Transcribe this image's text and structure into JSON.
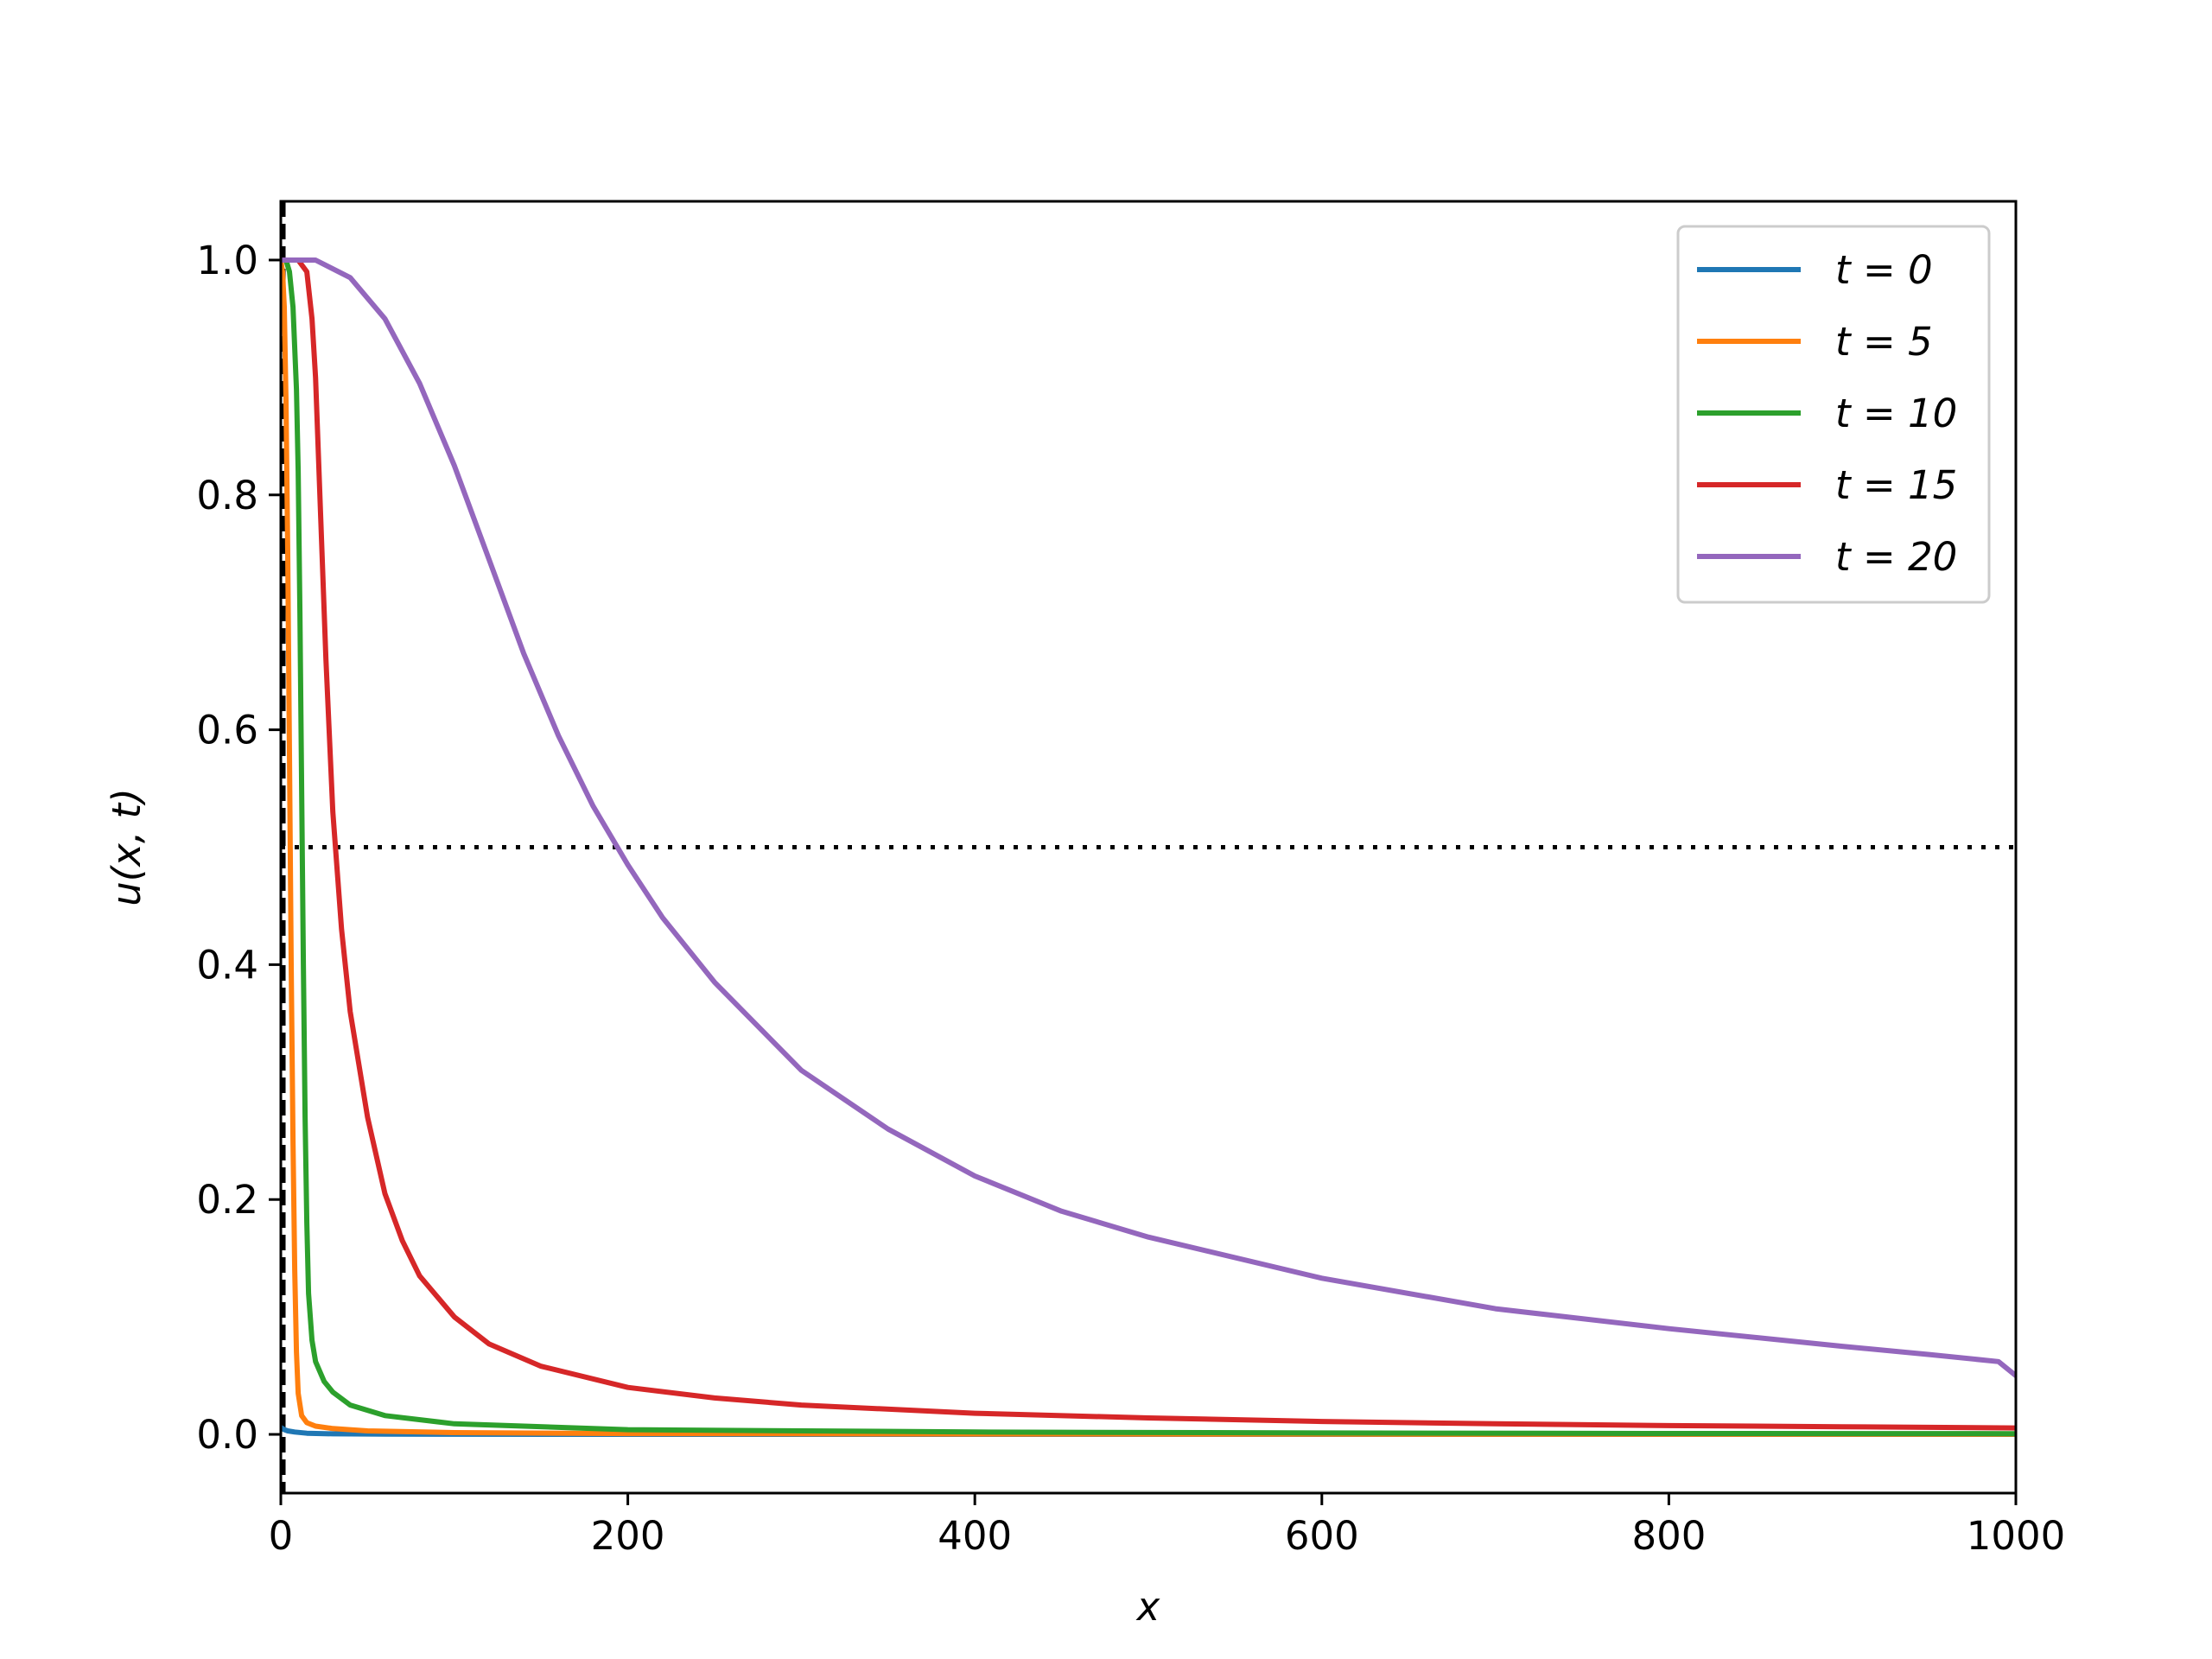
{
  "chart_data": {
    "type": "line",
    "title": "",
    "xlabel": "x",
    "ylabel": "u(x, t)",
    "xlim": [
      0,
      1000
    ],
    "ylim": [
      -0.05,
      1.05
    ],
    "xticks": [
      0,
      200,
      400,
      600,
      800,
      1000
    ],
    "xtick_labels": [
      "0",
      "200",
      "400",
      "600",
      "800",
      "1000"
    ],
    "yticks": [
      0.0,
      0.2,
      0.4,
      0.6,
      0.8,
      1.0
    ],
    "ytick_labels": [
      "0.0",
      "0.2",
      "0.4",
      "0.6",
      "0.8",
      "1.0"
    ],
    "grid": false,
    "legend_position": "top-right",
    "reference_lines": [
      {
        "orientation": "horizontal",
        "value": 0.5,
        "style": "dotted",
        "color": "#000000"
      },
      {
        "orientation": "vertical",
        "value": 1.5,
        "style": "dashed",
        "color": "#000000"
      }
    ],
    "series": [
      {
        "name": "t = 0",
        "color": "#1f77b4",
        "x": [
          0,
          1,
          2,
          4,
          8,
          15,
          30,
          60,
          100,
          200,
          400,
          600,
          800,
          1000
        ],
        "y": [
          0.006,
          0.005,
          0.004,
          0.003,
          0.002,
          0.001,
          0.0005,
          0.0002,
          0.0001,
          0.0,
          0.0,
          0.0,
          0.0,
          0.0
        ]
      },
      {
        "name": "t = 5",
        "color": "#ff7f0e",
        "x": [
          0,
          1,
          2,
          3,
          4,
          5,
          6,
          7,
          8,
          9,
          10,
          12,
          15,
          20,
          30,
          50,
          100,
          200,
          400,
          600,
          800,
          1000
        ],
        "y": [
          1.0,
          0.99,
          0.96,
          0.88,
          0.75,
          0.58,
          0.4,
          0.25,
          0.14,
          0.07,
          0.035,
          0.016,
          0.01,
          0.007,
          0.005,
          0.003,
          0.0015,
          0.0007,
          0.0003,
          0.0002,
          0.0001,
          0.0001
        ]
      },
      {
        "name": "t = 10",
        "color": "#2ca02c",
        "x": [
          0,
          3,
          5,
          7,
          9,
          10,
          11,
          12,
          13,
          14,
          15,
          16,
          18,
          20,
          25,
          30,
          40,
          60,
          100,
          200,
          400,
          600,
          800,
          1000
        ],
        "y": [
          1.0,
          1.0,
          0.99,
          0.96,
          0.89,
          0.82,
          0.7,
          0.55,
          0.4,
          0.27,
          0.18,
          0.12,
          0.08,
          0.062,
          0.045,
          0.036,
          0.025,
          0.016,
          0.009,
          0.004,
          0.002,
          0.0012,
          0.0008,
          0.0006
        ]
      },
      {
        "name": "t = 15",
        "color": "#d62728",
        "x": [
          0,
          5,
          10,
          15,
          18,
          20,
          23,
          26,
          30,
          35,
          40,
          50,
          60,
          70,
          80,
          100,
          120,
          150,
          200,
          250,
          300,
          400,
          500,
          600,
          700,
          800,
          900,
          1000
        ],
        "y": [
          1.0,
          1.0,
          1.0,
          0.99,
          0.95,
          0.9,
          0.78,
          0.66,
          0.53,
          0.43,
          0.36,
          0.27,
          0.205,
          0.165,
          0.135,
          0.1,
          0.077,
          0.058,
          0.04,
          0.031,
          0.025,
          0.018,
          0.014,
          0.011,
          0.009,
          0.0075,
          0.0065,
          0.0055
        ]
      },
      {
        "name": "t = 20",
        "color": "#9467bd",
        "x": [
          0,
          10,
          20,
          40,
          60,
          80,
          100,
          120,
          140,
          160,
          180,
          200,
          220,
          250,
          300,
          350,
          400,
          450,
          500,
          600,
          700,
          800,
          900,
          950,
          990,
          1000
        ],
        "y": [
          1.0,
          1.0,
          1.0,
          0.985,
          0.95,
          0.895,
          0.825,
          0.745,
          0.665,
          0.595,
          0.535,
          0.485,
          0.44,
          0.385,
          0.31,
          0.26,
          0.22,
          0.19,
          0.168,
          0.133,
          0.107,
          0.09,
          0.075,
          0.068,
          0.062,
          0.05
        ]
      }
    ]
  }
}
